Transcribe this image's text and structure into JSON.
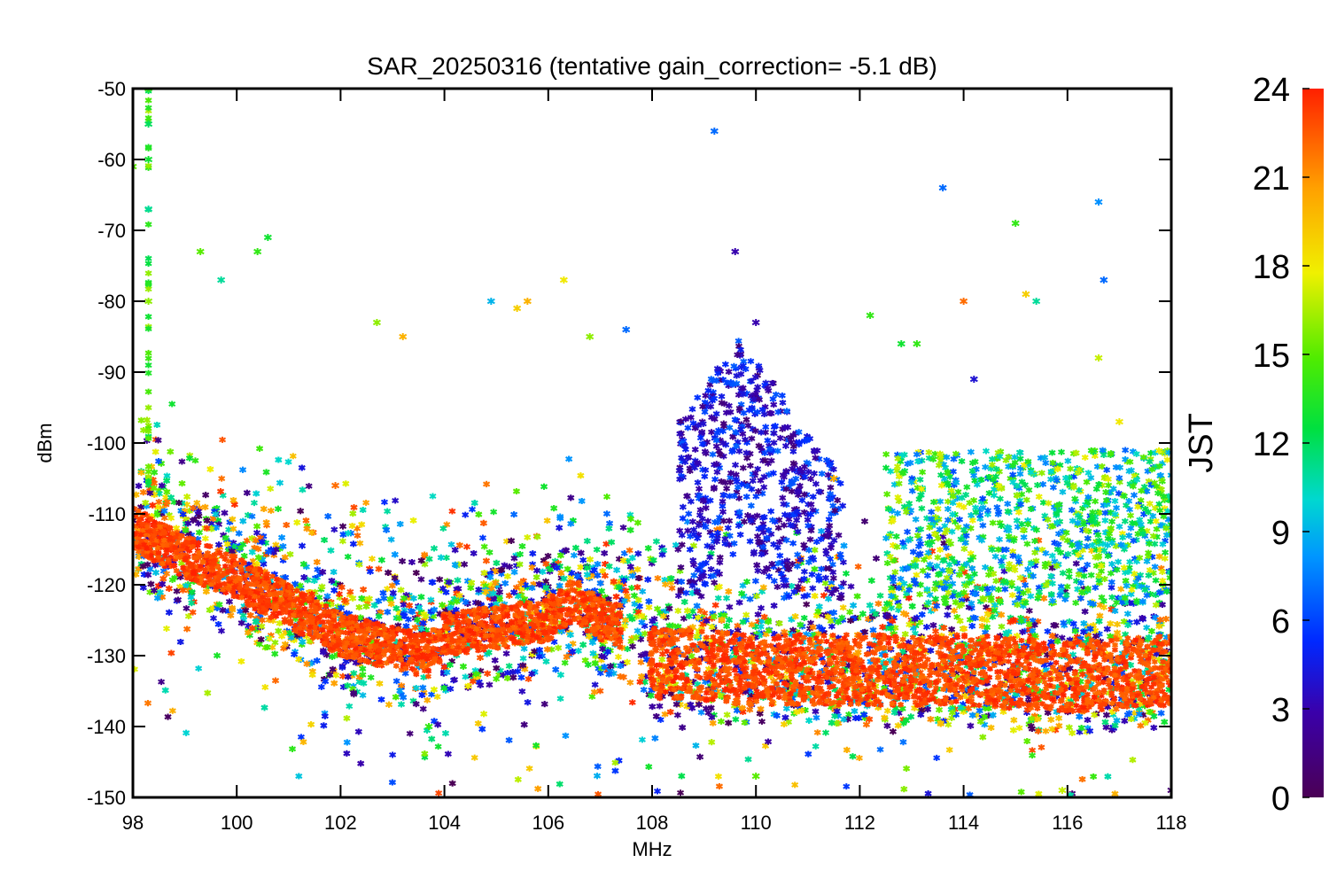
{
  "chart_data": {
    "type": "scatter",
    "title": "SAR_20250316 (tentative gain_correction= -5.1 dB)",
    "xlabel": "MHz",
    "ylabel": "dBm",
    "xlim": [
      98,
      118
    ],
    "ylim": [
      -150,
      -50
    ],
    "xticks": [
      "98",
      "100",
      "102",
      "104",
      "106",
      "108",
      "110",
      "112",
      "114",
      "116",
      "118"
    ],
    "yticks": [
      "-50",
      "-60",
      "-70",
      "-80",
      "-90",
      "-100",
      "-110",
      "-120",
      "-130",
      "-140",
      "-150"
    ],
    "grid": false,
    "marker": "asterisk",
    "colorbar": {
      "label": "JST",
      "range": [
        0,
        24
      ],
      "ticks": [
        "0",
        "3",
        "6",
        "9",
        "12",
        "15",
        "18",
        "21",
        "24"
      ],
      "colormap": "rainbow (purple-blue-cyan-green-yellow-red)"
    },
    "noise_floor": [
      {
        "x": 98.0,
        "y": -112
      },
      {
        "x": 99.0,
        "y": -116
      },
      {
        "x": 100.0,
        "y": -119
      },
      {
        "x": 101.0,
        "y": -123
      },
      {
        "x": 102.0,
        "y": -127
      },
      {
        "x": 103.0,
        "y": -129
      },
      {
        "x": 103.7,
        "y": -130
      },
      {
        "x": 104.0,
        "y": -127
      },
      {
        "x": 105.0,
        "y": -126
      },
      {
        "x": 106.0,
        "y": -125
      },
      {
        "x": 106.5,
        "y": -122
      },
      {
        "x": 107.0,
        "y": -125
      },
      {
        "x": 107.9,
        "y": -127
      },
      {
        "x": 108.0,
        "y": -131
      },
      {
        "x": 110.0,
        "y": -132
      },
      {
        "x": 112.0,
        "y": -132
      },
      {
        "x": 114.0,
        "y": -132
      },
      {
        "x": 116.0,
        "y": -133
      },
      {
        "x": 118.0,
        "y": -132
      }
    ],
    "peaks_jst24": [
      {
        "x": 100.0,
        "y": -94
      },
      {
        "x": 100.8,
        "y": -102
      },
      {
        "x": 108.1,
        "y": -104
      },
      {
        "x": 108.6,
        "y": -107
      },
      {
        "x": 106.5,
        "y": -110
      },
      {
        "x": 104.7,
        "y": -113
      },
      {
        "x": 105.3,
        "y": -114
      },
      {
        "x": 115.0,
        "y": -113
      },
      {
        "x": 114.5,
        "y": -115
      }
    ],
    "outliers": [
      {
        "x": 98.3,
        "y": -50,
        "jst": 14
      },
      {
        "x": 98.3,
        "y": -55,
        "jst": 12
      },
      {
        "x": 98.3,
        "y": -60,
        "jst": 13
      },
      {
        "x": 98.3,
        "y": -67,
        "jst": 11
      },
      {
        "x": 98.0,
        "y": -61,
        "jst": 15
      },
      {
        "x": 98.3,
        "y": -80,
        "jst": 16
      },
      {
        "x": 99.3,
        "y": -73,
        "jst": 15
      },
      {
        "x": 99.7,
        "y": -77,
        "jst": 11
      },
      {
        "x": 100.4,
        "y": -73,
        "jst": 14
      },
      {
        "x": 100.6,
        "y": -71,
        "jst": 13
      },
      {
        "x": 102.7,
        "y": -83,
        "jst": 16
      },
      {
        "x": 103.2,
        "y": -85,
        "jst": 20
      },
      {
        "x": 104.9,
        "y": -80,
        "jst": 9
      },
      {
        "x": 105.4,
        "y": -81,
        "jst": 19
      },
      {
        "x": 105.6,
        "y": -80,
        "jst": 20
      },
      {
        "x": 106.3,
        "y": -77,
        "jst": 18
      },
      {
        "x": 106.8,
        "y": -85,
        "jst": 16
      },
      {
        "x": 107.5,
        "y": -84,
        "jst": 7
      },
      {
        "x": 109.2,
        "y": -56,
        "jst": 7
      },
      {
        "x": 109.6,
        "y": -73,
        "jst": 3
      },
      {
        "x": 110.0,
        "y": -83,
        "jst": 3
      },
      {
        "x": 113.6,
        "y": -64,
        "jst": 7
      },
      {
        "x": 114.0,
        "y": -80,
        "jst": 22
      },
      {
        "x": 115.0,
        "y": -69,
        "jst": 14
      },
      {
        "x": 115.2,
        "y": -79,
        "jst": 19
      },
      {
        "x": 115.4,
        "y": -80,
        "jst": 11
      },
      {
        "x": 116.6,
        "y": -66,
        "jst": 8
      },
      {
        "x": 116.6,
        "y": -88,
        "jst": 17
      },
      {
        "x": 116.7,
        "y": -77,
        "jst": 7
      },
      {
        "x": 117.0,
        "y": -97,
        "jst": 18
      },
      {
        "x": 112.2,
        "y": -82,
        "jst": 14
      },
      {
        "x": 112.8,
        "y": -86,
        "jst": 13
      },
      {
        "x": 113.1,
        "y": -86,
        "jst": 14
      },
      {
        "x": 114.2,
        "y": -91,
        "jst": 4
      },
      {
        "x": 111.5,
        "y": -105,
        "jst": 20
      },
      {
        "x": 118.0,
        "y": -149,
        "jst": 1
      },
      {
        "x": 115.9,
        "y": -149,
        "jst": 17
      },
      {
        "x": 110.0,
        "y": -147,
        "jst": 15
      },
      {
        "x": 103.7,
        "y": -140,
        "jst": 14
      },
      {
        "x": 101.9,
        "y": -106,
        "jst": 22
      }
    ]
  }
}
